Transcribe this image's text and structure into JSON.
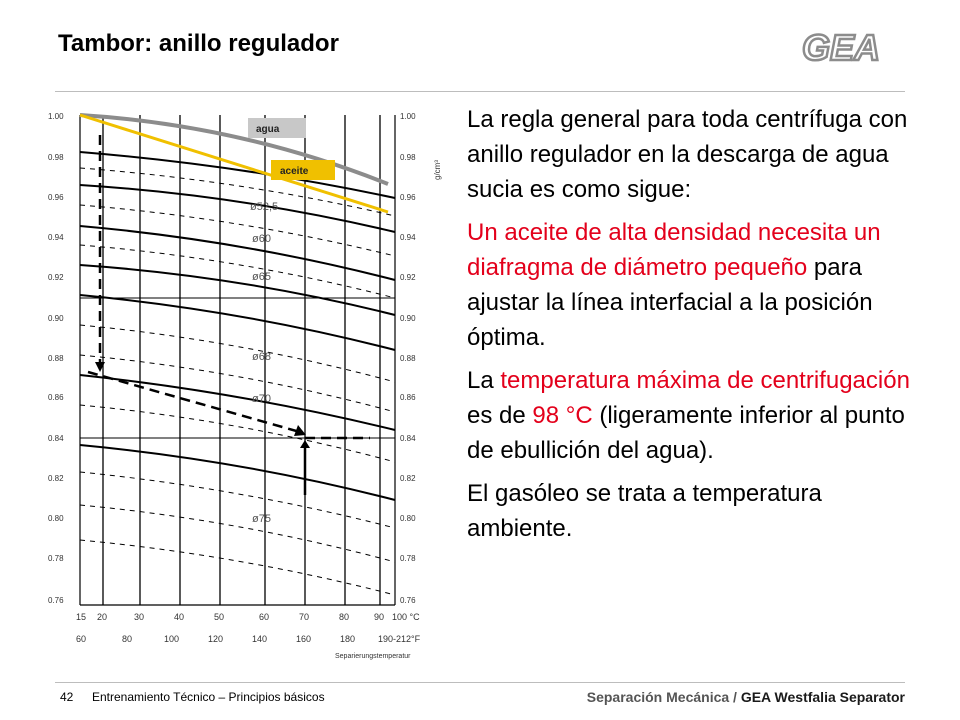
{
  "header": {
    "title": "Tambor: anillo regulador",
    "logo_text": "GEA"
  },
  "chart": {
    "labels": {
      "agua": "agua",
      "aceite": "aceite"
    },
    "y_ticks": [
      "1.00",
      "0.98",
      "0.96",
      "0.94",
      "0.92",
      "0.90",
      "0.88",
      "0.86",
      "0.84",
      "0.82",
      "0.80",
      "0.78",
      "0.76"
    ],
    "x_ticks_c": [
      "15",
      "20",
      "30",
      "40",
      "50",
      "60",
      "70",
      "80",
      "90",
      "100 °C"
    ],
    "x_ticks_f": [
      "60",
      "80",
      "100",
      "120",
      "140",
      "160",
      "180",
      "190-212°F"
    ],
    "x_label": "Separierungstemperatur",
    "y_label": "g/cm³",
    "diaphragm_labels": [
      "ø52,5",
      "ø60",
      "ø65",
      "ø68",
      "ø70",
      "ø75"
    ],
    "colors": {
      "agua": "#8c8c8c",
      "aceite": "#f0c000",
      "red": "#e3001b"
    }
  },
  "text": {
    "p1": "La regla general para toda centrífuga con anillo regulador en la descarga de agua sucia es como sigue:",
    "p2_red": "Un aceite de alta densidad necesita un diafragma de diámetro pequeño",
    "p2_rest": " para ajustar la línea interfacial a la posición óptima.",
    "p3_a": "La ",
    "p3_red1": "temperatura máxima de centrifugación",
    "p3_b": " es de ",
    "p3_red2": "98 °C",
    "p3_c": " (ligeramente inferior al punto de ebullición del agua).",
    "p4": "El gasóleo se trata a temperatura ambiente."
  },
  "footer": {
    "page_number": "42",
    "course": "Entrenamiento Técnico – Principios básicos",
    "section": "Separación Mecánica / ",
    "brand": "GEA Westfalia Separator"
  }
}
